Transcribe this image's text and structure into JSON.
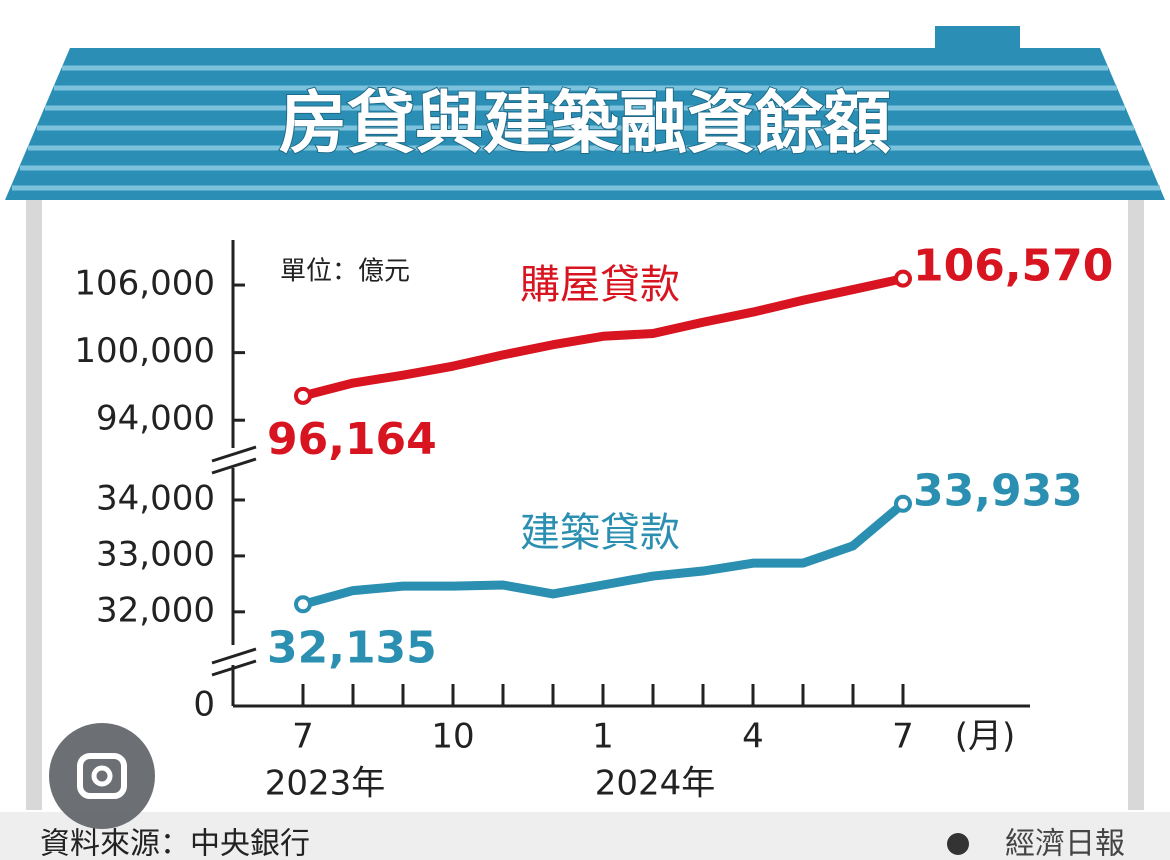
{
  "chart_data": {
    "type": "line",
    "title": "房貸與建築融資餘額",
    "unit_note": "單位：億元",
    "categories": [
      "7",
      null,
      null,
      "10",
      null,
      null,
      "1",
      null,
      null,
      "4",
      null,
      null,
      "7"
    ],
    "year_labels": [
      "2023年",
      "2024年"
    ],
    "x_unit": "(月)",
    "series": [
      {
        "name": "購屋貸款",
        "color": "#d7141f",
        "axis": "y",
        "values": [
          96164,
          97300,
          98000,
          98800,
          99800,
          100700,
          101450,
          101700,
          102700,
          103600,
          104650,
          105600,
          106570
        ],
        "value_labels": [
          "96,164",
          null,
          null,
          null,
          null,
          null,
          null,
          null,
          null,
          null,
          null,
          null,
          "106,570"
        ]
      },
      {
        "name": "建築貸款",
        "color": "#2a8fb0",
        "axis": "y2",
        "values": [
          32135,
          32380,
          32460,
          32460,
          32480,
          32320,
          32480,
          32640,
          32730,
          32870,
          32870,
          33180,
          33933
        ],
        "value_labels": [
          "32,135",
          null,
          null,
          null,
          null,
          null,
          null,
          null,
          null,
          null,
          null,
          null,
          "33,933"
        ]
      }
    ],
    "ylim": [
      91000,
      110000
    ],
    "yticks": [
      {
        "value": 94000,
        "label": "94,000"
      },
      {
        "value": 100000,
        "label": "100,000"
      },
      {
        "value": 106000,
        "label": "106,000"
      }
    ],
    "y2lim": [
      31300,
      34500
    ],
    "y2ticks": [
      {
        "value": 32000,
        "label": "32,000"
      },
      {
        "value": 33000,
        "label": "33,000"
      },
      {
        "value": 34000,
        "label": "34,000"
      }
    ],
    "origin_tick": 0,
    "source": "資料來源：中央銀行",
    "publisher": "經濟日報"
  }
}
